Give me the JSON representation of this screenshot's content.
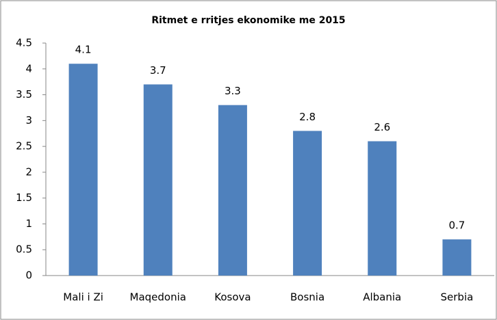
{
  "chart_data": {
    "type": "bar",
    "title": "Ritmet e rritjes ekonomike me 2015",
    "categories": [
      "Mali i Zi",
      "Maqedonia",
      "Kosova",
      "Bosnia",
      "Albania",
      "Serbia"
    ],
    "values": [
      4.1,
      3.7,
      3.3,
      2.8,
      2.6,
      0.7
    ],
    "color": "#4f81bd",
    "ylim": [
      0,
      4.5
    ],
    "yticks": [
      0,
      0.5,
      1,
      1.5,
      2,
      2.5,
      3,
      3.5,
      4,
      4.5
    ],
    "grid": false,
    "data_labels": true
  }
}
